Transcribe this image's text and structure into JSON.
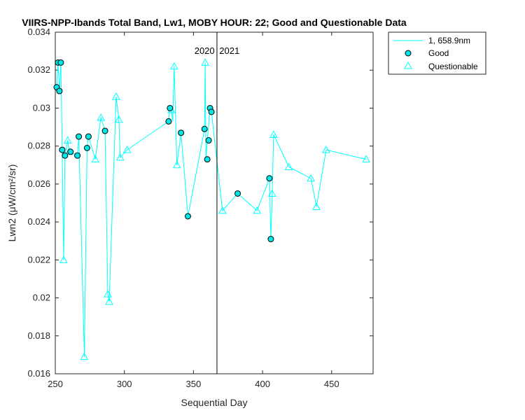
{
  "chart_data": {
    "type": "line",
    "title": "VIIRS-NPP-Ibands Total Band, Lw1, MOBY HOUR: 22;  Good and Questionable Data",
    "xlabel": "Sequential Day",
    "ylabel": "Lwn2 (μW/cm²/sr)",
    "xlim": [
      250,
      480
    ],
    "ylim": [
      0.016,
      0.034
    ],
    "xticks": [
      250,
      300,
      350,
      400,
      450
    ],
    "xtick_labels": [
      "250",
      "300",
      "350",
      "400",
      "450"
    ],
    "yticks": [
      0.016,
      0.018,
      0.02,
      0.022,
      0.024,
      0.026,
      0.028,
      0.03,
      0.032,
      0.034
    ],
    "ytick_labels": [
      "0.016",
      "0.018",
      "0.02",
      "0.022",
      "0.024",
      "0.026",
      "0.028",
      "0.03",
      "0.032",
      "0.034"
    ],
    "grid": false,
    "legend_position": "outside-top-right",
    "colors": {
      "line": "#00ffff",
      "good_fill": "#00e5e5",
      "marker_edge": "#000000",
      "questionable": "#00ffff"
    },
    "series": [
      {
        "name": "1, 658.9nm",
        "style": "line",
        "x": [
          251,
          252,
          253,
          254,
          255,
          256,
          257,
          259,
          260,
          261,
          266,
          267,
          271,
          273,
          274,
          279,
          283,
          286,
          288,
          289,
          294,
          296,
          297,
          302,
          332,
          333,
          334,
          335,
          336,
          338,
          341,
          346,
          358,
          358.5,
          359,
          360,
          362,
          363,
          371,
          382,
          396,
          405,
          406,
          407,
          408,
          419,
          435,
          439,
          446,
          475
        ],
        "y": [
          0.0311,
          0.0324,
          0.0309,
          0.0324,
          0.0278,
          0.022,
          0.0275,
          0.0283,
          0.0277,
          0.0277,
          0.0275,
          0.0285,
          0.0169,
          0.0279,
          0.0285,
          0.0273,
          0.0295,
          0.0288,
          0.0202,
          0.0198,
          0.0306,
          0.0294,
          0.0274,
          0.0278,
          0.0293,
          0.03,
          0.0299,
          0.0293,
          0.0322,
          0.027,
          0.0287,
          0.0243,
          0.0289,
          0.0324,
          0.0273,
          0.0283,
          0.03,
          0.0298,
          0.0246,
          0.0255,
          0.0246,
          0.0263,
          0.0231,
          0.0255,
          0.0286,
          0.0269,
          0.0263,
          0.0248,
          0.0278,
          0.0273
        ]
      },
      {
        "name": "Good",
        "style": "marker-circle",
        "x": [
          251,
          252,
          253,
          254,
          255,
          257,
          261,
          266,
          267,
          273,
          274,
          286,
          332,
          333,
          341,
          346,
          358,
          360,
          361,
          362,
          363,
          382,
          405,
          406
        ],
        "y": [
          0.0311,
          0.0324,
          0.0309,
          0.0324,
          0.0278,
          0.0275,
          0.0277,
          0.0275,
          0.0285,
          0.0279,
          0.0285,
          0.0288,
          0.0293,
          0.03,
          0.0287,
          0.0243,
          0.0289,
          0.0273,
          0.0283,
          0.03,
          0.0298,
          0.0255,
          0.0263,
          0.0231
        ]
      },
      {
        "name": "Questionable",
        "style": "marker-triangle",
        "x": [
          256,
          259,
          260,
          271,
          279,
          283,
          288,
          289,
          294,
          296,
          297,
          302,
          334,
          336,
          338,
          358.5,
          371,
          396,
          407,
          408,
          419,
          435,
          439,
          446,
          475
        ],
        "y": [
          0.022,
          0.0283,
          0.0277,
          0.0169,
          0.0273,
          0.0295,
          0.0202,
          0.0198,
          0.0306,
          0.0294,
          0.0274,
          0.0278,
          0.0299,
          0.0322,
          0.027,
          0.0324,
          0.0246,
          0.0246,
          0.0255,
          0.0286,
          0.0269,
          0.0263,
          0.0248,
          0.0278,
          0.0273
        ]
      }
    ],
    "vertical_line": {
      "x": 367
    },
    "annotations": [
      {
        "text": "2020",
        "x": 358
      },
      {
        "text": "2021",
        "x": 376
      }
    ]
  }
}
